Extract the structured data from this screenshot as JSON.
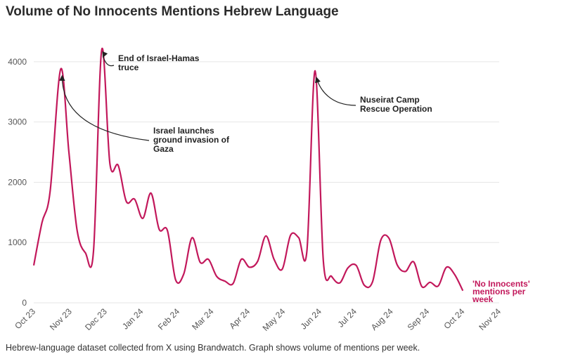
{
  "page": {
    "title": "Volume of No Innocents Mentions Hebrew Language",
    "caption": "Hebrew-language dataset collected from X using Brandwatch. Graph shows volume of mentions per week."
  },
  "chart_data": {
    "type": "line",
    "title": "Volume of No Innocents Mentions Hebrew Language",
    "xlabel": "",
    "ylabel": "",
    "ylim": [
      0,
      4500
    ],
    "yticks": [
      0,
      1000,
      2000,
      3000,
      4000
    ],
    "xlim": [
      "2023-10-01",
      "2024-11-01"
    ],
    "xticks": [
      {
        "date": "2023-10-01",
        "label": "Oct 23"
      },
      {
        "date": "2023-11-01",
        "label": "Nov 23"
      },
      {
        "date": "2023-12-01",
        "label": "Dec 23"
      },
      {
        "date": "2024-01-01",
        "label": "Jan 24"
      },
      {
        "date": "2024-02-01",
        "label": "Feb 24"
      },
      {
        "date": "2024-03-01",
        "label": "Mar 24"
      },
      {
        "date": "2024-04-01",
        "label": "Apr 24"
      },
      {
        "date": "2024-05-01",
        "label": "May 24"
      },
      {
        "date": "2024-06-01",
        "label": "Jun 24"
      },
      {
        "date": "2024-07-01",
        "label": "Jul 24"
      },
      {
        "date": "2024-08-01",
        "label": "Aug 24"
      },
      {
        "date": "2024-09-01",
        "label": "Sep 24"
      },
      {
        "date": "2024-10-01",
        "label": "Oct 24"
      },
      {
        "date": "2024-11-01",
        "label": "Nov 24"
      }
    ],
    "grid": true,
    "color": "#c2185b",
    "series": [
      {
        "name": "'No Innocents' mentions per week",
        "points": [
          [
            "2023-10-01",
            620
          ],
          [
            "2023-10-08",
            1330
          ],
          [
            "2023-10-15",
            1850
          ],
          [
            "2023-10-24",
            3880
          ],
          [
            "2023-10-31",
            2500
          ],
          [
            "2023-11-07",
            1200
          ],
          [
            "2023-11-14",
            830
          ],
          [
            "2023-11-21",
            860
          ],
          [
            "2023-11-28",
            4200
          ],
          [
            "2023-12-05",
            2300
          ],
          [
            "2023-12-12",
            2280
          ],
          [
            "2023-12-19",
            1680
          ],
          [
            "2023-12-26",
            1720
          ],
          [
            "2024-01-02",
            1400
          ],
          [
            "2024-01-09",
            1820
          ],
          [
            "2024-01-16",
            1220
          ],
          [
            "2024-01-23",
            1200
          ],
          [
            "2024-01-30",
            380
          ],
          [
            "2024-02-06",
            480
          ],
          [
            "2024-02-13",
            1080
          ],
          [
            "2024-02-20",
            670
          ],
          [
            "2024-02-27",
            720
          ],
          [
            "2024-03-05",
            440
          ],
          [
            "2024-03-12",
            360
          ],
          [
            "2024-03-19",
            320
          ],
          [
            "2024-03-26",
            720
          ],
          [
            "2024-04-02",
            590
          ],
          [
            "2024-04-09",
            690
          ],
          [
            "2024-04-16",
            1110
          ],
          [
            "2024-04-23",
            720
          ],
          [
            "2024-04-30",
            560
          ],
          [
            "2024-05-07",
            1120
          ],
          [
            "2024-05-14",
            1080
          ],
          [
            "2024-05-21",
            860
          ],
          [
            "2024-05-28",
            3850
          ],
          [
            "2024-06-04",
            690
          ],
          [
            "2024-06-11",
            440
          ],
          [
            "2024-06-18",
            330
          ],
          [
            "2024-06-25",
            580
          ],
          [
            "2024-07-02",
            620
          ],
          [
            "2024-07-09",
            290
          ],
          [
            "2024-07-16",
            350
          ],
          [
            "2024-07-23",
            1040
          ],
          [
            "2024-07-30",
            1070
          ],
          [
            "2024-08-06",
            630
          ],
          [
            "2024-08-13",
            520
          ],
          [
            "2024-08-20",
            680
          ],
          [
            "2024-08-27",
            270
          ],
          [
            "2024-09-03",
            340
          ],
          [
            "2024-09-10",
            280
          ],
          [
            "2024-09-17",
            590
          ],
          [
            "2024-09-24",
            470
          ],
          [
            "2024-10-01",
            200
          ]
        ]
      }
    ],
    "series_label": [
      "'No Innocents'",
      "mentions per",
      "week"
    ],
    "annotations": [
      {
        "lines": [
          "End of Israel-Hamas",
          "truce"
        ],
        "date": "2023-11-28",
        "value": 4200
      },
      {
        "lines": [
          "Israel launches",
          "ground invasion of",
          "Gaza"
        ],
        "date": "2023-10-24",
        "value": 3880
      },
      {
        "lines": [
          "Nuseirat Camp",
          "Rescue Operation"
        ],
        "date": "2024-05-28",
        "value": 3850
      }
    ]
  }
}
